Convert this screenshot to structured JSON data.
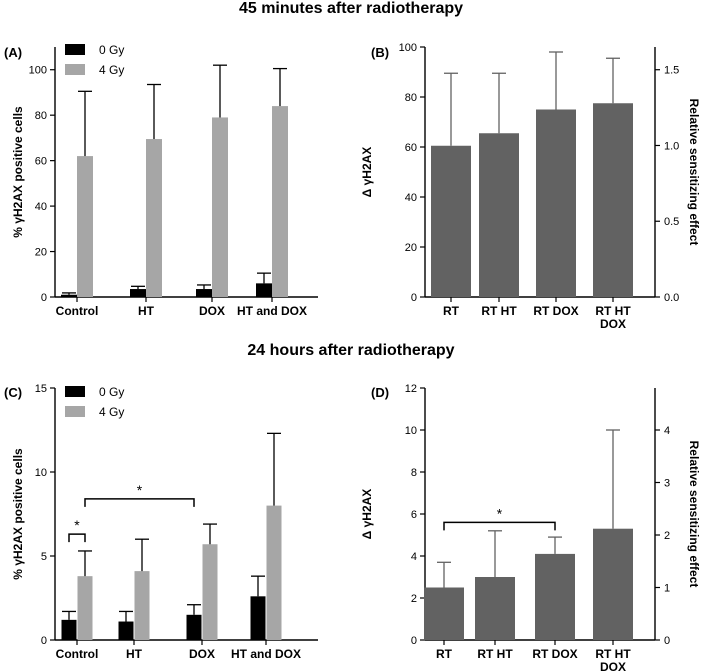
{
  "headings": {
    "top": "45 minutes after radiotherapy",
    "bottom": "24 hours after radiotherapy"
  },
  "colors": {
    "zero_gy": "#000000",
    "four_gy": "#a6a6a6",
    "delta_bar": "#626262",
    "axis": "#000000",
    "error": "#000000",
    "delta_error": "#626262"
  },
  "chart_data": [
    {
      "panel": "(A)",
      "type": "bar",
      "categories": [
        "Control",
        "HT",
        "DOX",
        "HT and DOX"
      ],
      "ylabel": "% γH2AX positive cells",
      "ylim": [
        0,
        110
      ],
      "yticks": [
        0,
        20,
        40,
        60,
        80,
        100
      ],
      "legend_position": "top-left",
      "series": [
        {
          "name": "0 Gy",
          "values": [
            1,
            3.5,
            3.5,
            6
          ],
          "errors": [
            0.8,
            1.2,
            1.8,
            4.5
          ]
        },
        {
          "name": "4 Gy",
          "values": [
            62,
            69.5,
            79,
            84
          ],
          "errors": [
            28.5,
            24,
            23,
            16.5
          ]
        }
      ]
    },
    {
      "panel": "(B)",
      "type": "bar",
      "categories": [
        "RT",
        "RT HT",
        "RT DOX",
        "RT HT DOX"
      ],
      "category_lines": [
        [
          "RT"
        ],
        [
          "RT HT"
        ],
        [
          "RT DOX"
        ],
        [
          "RT HT",
          "DOX"
        ]
      ],
      "ylabel": "Δ γH2AX",
      "y2label": "Relative sensitizing effect",
      "ylim": [
        0,
        100
      ],
      "yticks": [
        0,
        20,
        40,
        60,
        80,
        100
      ],
      "y2lim": [
        0,
        1.65
      ],
      "y2ticks": [
        "0.0",
        "0.5",
        "1.0",
        "1.5"
      ],
      "values": [
        60.5,
        65.5,
        75,
        77.5
      ],
      "errors": [
        29,
        24,
        23,
        18
      ]
    },
    {
      "panel": "(C)",
      "type": "bar",
      "categories": [
        "Control",
        "HT",
        "DOX",
        "HT and DOX"
      ],
      "ylabel": "% γH2AX positive cells",
      "ylim": [
        0,
        15
      ],
      "yticks": [
        0,
        5,
        10,
        15
      ],
      "legend_position": "top-left",
      "series": [
        {
          "name": "0 Gy",
          "values": [
            1.2,
            1.1,
            1.5,
            2.6
          ],
          "errors": [
            0.5,
            0.6,
            0.6,
            1.2
          ]
        },
        {
          "name": "4 Gy",
          "values": [
            3.8,
            4.1,
            5.7,
            8
          ],
          "errors": [
            1.5,
            1.9,
            1.2,
            4.3
          ]
        }
      ],
      "annotations": [
        {
          "text": "*",
          "from": [
            "Control",
            "0 Gy"
          ],
          "to": [
            "Control",
            "4 Gy"
          ],
          "level": 6.3
        },
        {
          "text": "*",
          "from": [
            "Control",
            "4 Gy"
          ],
          "to": [
            "DOX",
            "0 Gy"
          ],
          "level": 8.4
        }
      ]
    },
    {
      "panel": "(D)",
      "type": "bar",
      "categories": [
        "RT",
        "RT HT",
        "RT DOX",
        "RT HT DOX"
      ],
      "category_lines": [
        [
          "RT"
        ],
        [
          "RT HT"
        ],
        [
          "RT DOX"
        ],
        [
          "RT HT",
          "DOX"
        ]
      ],
      "ylabel": "Δ γH2AX",
      "y2label": "Relative sensitizing effect",
      "ylim": [
        0,
        12
      ],
      "yticks": [
        0,
        2,
        4,
        6,
        8,
        10,
        12
      ],
      "y2lim": [
        0,
        4.8
      ],
      "y2ticks": [
        "0",
        "1",
        "2",
        "3",
        "4"
      ],
      "values": [
        2.5,
        3,
        4.1,
        5.3
      ],
      "errors": [
        1.2,
        2.2,
        0.8,
        4.7
      ],
      "annotations": [
        {
          "text": "*",
          "from": "RT",
          "to": "RT DOX",
          "level": 5.6
        }
      ]
    }
  ]
}
